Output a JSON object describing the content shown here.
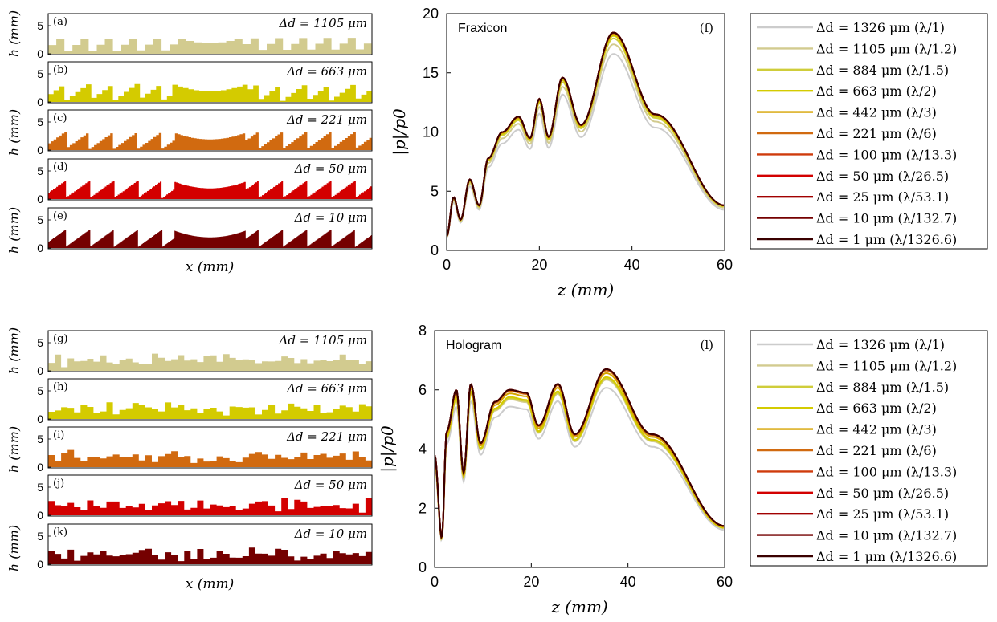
{
  "ticks_x_strips": [],
  "strip_ylabel": "h (mm)",
  "strip_xlabel": "x (mm)",
  "main_xlabel": "z (mm)",
  "main_ylabel": "|p|/p0",
  "legend_entries": [
    "Δd = 1326 μm (λ/1)",
    "Δd = 1105 μm (λ/1.2)",
    "Δd = 884 μm (λ/1.5)",
    "Δd = 663 μm (λ/2)",
    "Δd = 442 μm (λ/3)",
    "Δd = 221 μm (λ/6)",
    "Δd = 100 μm (λ/13.3)",
    "Δd = 50 μm (λ/26.5)",
    "Δd = 25 μm (λ/53.1)",
    "Δd = 10 μm (λ/132.7)",
    "Δd = 1 μm (λ/1326.6)"
  ],
  "colors": [
    "#cccccc",
    "#d2cb8f",
    "#cfcd3a",
    "#d4cb00",
    "#d6a400",
    "#d16a10",
    "#cf3b0c",
    "#d30000",
    "#a10000",
    "#750000",
    "#3a0000"
  ],
  "chart_data": [
    {
      "type": "line",
      "panel_tag": "(f)",
      "inset_title": "Fraxicon",
      "xlabel": "z (mm)",
      "ylabel": "|p|/p0",
      "xlim": [
        0,
        60
      ],
      "ylim": [
        0,
        20
      ],
      "xticks": [
        0,
        20,
        40,
        60
      ],
      "yticks": [
        0,
        5,
        10,
        15,
        20
      ],
      "peak_z": 36,
      "peaks_by_series": [
        14.4,
        16.2,
        17.3,
        17.8,
        18.1,
        18.3,
        18.4,
        18.4,
        18.4,
        18.4,
        18.4
      ],
      "series": [
        {
          "name": "Δd = 1326 μm (λ/1)"
        },
        {
          "name": "Δd = 1105 μm (λ/1.2)"
        },
        {
          "name": "Δd = 884 μm (λ/1.5)"
        },
        {
          "name": "Δd = 663 μm (λ/2)"
        },
        {
          "name": "Δd = 442 μm (λ/3)"
        },
        {
          "name": "Δd = 221 μm (λ/6)"
        },
        {
          "name": "Δd = 100 μm (λ/13.3)"
        },
        {
          "name": "Δd = 50 μm (λ/26.5)"
        },
        {
          "name": "Δd = 25 μm (λ/53.1)"
        },
        {
          "name": "Δd = 10 μm (λ/132.7)"
        },
        {
          "name": "Δd = 1 μm (λ/1326.6)"
        }
      ],
      "key_points_z": [
        0,
        1.5,
        3,
        5,
        7,
        9,
        12,
        15.5,
        18,
        20,
        22,
        25,
        29,
        36,
        45,
        60
      ],
      "key_points_p_ref": [
        1.2,
        4.5,
        2.6,
        6.0,
        3.8,
        7.8,
        10.0,
        11.3,
        9.5,
        12.8,
        9.6,
        14.6,
        10.6,
        18.4,
        11.5,
        3.8
      ]
    },
    {
      "type": "line",
      "panel_tag": "(l)",
      "inset_title": "Hologram",
      "xlabel": "z (mm)",
      "ylabel": "|p|/p0",
      "xlim": [
        0,
        60
      ],
      "ylim": [
        0,
        8
      ],
      "xticks": [
        0,
        20,
        40,
        60
      ],
      "yticks": [
        0,
        2,
        4,
        6,
        8
      ],
      "peak_z": 35.5,
      "peaks_by_series": [
        5.3,
        5.9,
        6.0,
        6.1,
        6.4,
        6.6,
        6.7,
        6.7,
        6.7,
        6.7,
        6.7
      ],
      "series": [
        {
          "name": "Δd = 1326 μm (λ/1)"
        },
        {
          "name": "Δd = 1105 μm (λ/1.2)"
        },
        {
          "name": "Δd = 884 μm (λ/1.5)"
        },
        {
          "name": "Δd = 663 μm (λ/2)"
        },
        {
          "name": "Δd = 442 μm (λ/3)"
        },
        {
          "name": "Δd = 221 μm (λ/6)"
        },
        {
          "name": "Δd = 100 μm (λ/13.3)"
        },
        {
          "name": "Δd = 50 μm (λ/26.5)"
        },
        {
          "name": "Δd = 25 μm (λ/53.1)"
        },
        {
          "name": "Δd = 10 μm (λ/132.7)"
        },
        {
          "name": "Δd = 1 μm (λ/1326.6)"
        }
      ],
      "key_points_z": [
        0,
        1.5,
        2.5,
        4.5,
        6,
        7.5,
        9.5,
        12.5,
        15.5,
        19,
        21.5,
        25.5,
        29,
        35.5,
        45,
        60
      ],
      "key_points_p_ref": [
        3.8,
        1.0,
        4.6,
        6.0,
        3.2,
        6.2,
        4.2,
        5.6,
        6.0,
        5.9,
        4.8,
        6.2,
        4.5,
        6.7,
        4.5,
        1.4
      ]
    },
    {
      "type": "bar",
      "panel_set": "fraxicon-profiles",
      "ylabel": "h (mm)",
      "xlabel": "x (mm)",
      "yticks": [
        0,
        5
      ],
      "ylim": [
        0,
        7
      ],
      "panels": [
        {
          "tag": "(a)",
          "label": "Δd = 1105 μm"
        },
        {
          "tag": "(b)",
          "label": "Δd = 663 μm"
        },
        {
          "tag": "(c)",
          "label": "Δd = 221 μm"
        },
        {
          "tag": "(d)",
          "label": "Δd = 50 μm"
        },
        {
          "tag": "(e)",
          "label": "Δd = 10 μm"
        }
      ]
    },
    {
      "type": "bar",
      "panel_set": "hologram-profiles",
      "ylabel": "h (mm)",
      "xlabel": "x (mm)",
      "yticks": [
        0,
        5
      ],
      "ylim": [
        0,
        7
      ],
      "panels": [
        {
          "tag": "(g)",
          "label": "Δd = 1105 μm"
        },
        {
          "tag": "(h)",
          "label": "Δd = 663 μm"
        },
        {
          "tag": "(i)",
          "label": "Δd = 221 μm"
        },
        {
          "tag": "(j)",
          "label": "Δd = 50 μm"
        },
        {
          "tag": "(k)",
          "label": "Δd = 10 μm"
        }
      ]
    }
  ]
}
